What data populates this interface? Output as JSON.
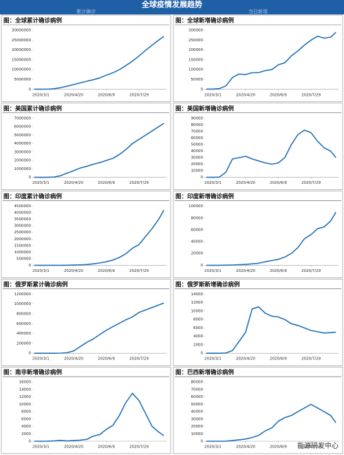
{
  "header": {
    "title": "全球疫情发展趋势",
    "left_label": "累计确诊",
    "right_label": "当日新增"
  },
  "watermark": "能源研发中心",
  "chart_data": [
    {
      "type": "line",
      "title": "图：全球累计确诊病例",
      "color": "#1f6fb5",
      "x": [
        -10,
        0,
        10,
        20,
        30,
        40,
        50,
        60,
        70,
        80,
        90,
        100,
        110,
        120,
        130,
        140,
        150,
        160,
        170,
        180,
        188
      ],
      "values": [
        75000,
        88000,
        120000,
        330000,
        850000,
        1600000,
        2400000,
        3300000,
        4100000,
        4900000,
        5800000,
        7200000,
        8400000,
        10000000,
        12100000,
        14300000,
        17000000,
        19800000,
        22500000,
        25000000,
        27000000
      ],
      "xlim": [
        -12,
        192
      ],
      "ylim": [
        0,
        30000000
      ],
      "yticks": [
        0,
        5000000,
        10000000,
        15000000,
        20000000,
        25000000,
        30000000
      ],
      "xticks": [
        {
          "value": 0,
          "label": "2020/3/1"
        },
        {
          "value": 50,
          "label": "2020/4/20"
        },
        {
          "value": 100,
          "label": "2020/6/9"
        },
        {
          "value": 150,
          "label": "2020/7/29"
        }
      ]
    },
    {
      "type": "line",
      "title": "图：全球新增确诊病例",
      "color": "#1f6fb5",
      "x": [
        -10,
        0,
        10,
        20,
        30,
        40,
        50,
        60,
        70,
        80,
        90,
        100,
        110,
        120,
        130,
        140,
        150,
        160,
        170,
        180,
        188
      ],
      "values": [
        1500,
        1800,
        4000,
        18000,
        60000,
        78000,
        75000,
        85000,
        85000,
        95000,
        100000,
        125000,
        135000,
        170000,
        195000,
        225000,
        250000,
        270000,
        260000,
        265000,
        290000
      ],
      "xlim": [
        -12,
        192
      ],
      "ylim": [
        0,
        300000
      ],
      "yticks": [
        0,
        50000,
        100000,
        150000,
        200000,
        250000,
        300000
      ],
      "xticks": [
        {
          "value": 0,
          "label": "2020/3/1"
        },
        {
          "value": 50,
          "label": "2020/4/20"
        },
        {
          "value": 100,
          "label": "2020/6/9"
        },
        {
          "value": 150,
          "label": "2020/7/29"
        }
      ]
    },
    {
      "type": "line",
      "title": "图：美国累计确诊病例",
      "color": "#1f6fb5",
      "x": [
        -10,
        0,
        10,
        20,
        30,
        40,
        50,
        60,
        70,
        80,
        90,
        100,
        110,
        120,
        130,
        140,
        150,
        160,
        170,
        180,
        188
      ],
      "values": [
        15,
        70,
        1600,
        33000,
        190000,
        500000,
        780000,
        1100000,
        1300000,
        1550000,
        1750000,
        2000000,
        2250000,
        2700000,
        3300000,
        4000000,
        4500000,
        5000000,
        5500000,
        6000000,
        6400000
      ],
      "xlim": [
        -12,
        192
      ],
      "ylim": [
        0,
        7000000
      ],
      "yticks": [
        0,
        1000000,
        2000000,
        3000000,
        4000000,
        5000000,
        6000000,
        7000000
      ],
      "xticks": [
        {
          "value": 0,
          "label": "2020/3/1"
        },
        {
          "value": 50,
          "label": "2020/4/20"
        },
        {
          "value": 100,
          "label": "2020/6/9"
        },
        {
          "value": 150,
          "label": "2020/7/29"
        }
      ]
    },
    {
      "type": "line",
      "title": "图：美国新增确诊病例",
      "color": "#1f6fb5",
      "x": [
        -10,
        0,
        10,
        20,
        30,
        40,
        50,
        60,
        70,
        80,
        90,
        100,
        110,
        120,
        130,
        140,
        150,
        160,
        170,
        180,
        188
      ],
      "values": [
        0,
        10,
        300,
        8000,
        28000,
        30000,
        32000,
        28000,
        25000,
        22000,
        20000,
        22000,
        30000,
        50000,
        65000,
        72000,
        68000,
        55000,
        45000,
        40000,
        30000
      ],
      "xlim": [
        -12,
        192
      ],
      "ylim": [
        0,
        90000
      ],
      "yticks": [
        0,
        10000,
        20000,
        30000,
        40000,
        50000,
        60000,
        70000,
        80000,
        90000
      ],
      "xticks": [
        {
          "value": 0,
          "label": "2020/3/1"
        },
        {
          "value": 50,
          "label": "2020/4/20"
        },
        {
          "value": 100,
          "label": "2020/6/9"
        },
        {
          "value": 150,
          "label": "2020/7/29"
        }
      ]
    },
    {
      "type": "line",
      "title": "图：印度累计确诊病例",
      "color": "#1f6fb5",
      "x": [
        -10,
        0,
        10,
        20,
        30,
        40,
        50,
        60,
        70,
        80,
        90,
        100,
        110,
        120,
        130,
        140,
        150,
        160,
        170,
        180,
        188
      ],
      "values": [
        3,
        3,
        30,
        500,
        2500,
        7000,
        18000,
        33000,
        60000,
        110000,
        180000,
        270000,
        400000,
        600000,
        880000,
        1300000,
        1580000,
        2200000,
        2800000,
        3500000,
        4200000
      ],
      "xlim": [
        -12,
        192
      ],
      "ylim": [
        0,
        4500000
      ],
      "yticks": [
        0,
        500000,
        1000000,
        1500000,
        2000000,
        2500000,
        3000000,
        3500000,
        4000000,
        4500000
      ],
      "xticks": [
        {
          "value": 0,
          "label": "2020/3/1"
        },
        {
          "value": 50,
          "label": "2020/4/20"
        },
        {
          "value": 100,
          "label": "2020/6/9"
        },
        {
          "value": 150,
          "label": "2020/7/29"
        }
      ]
    },
    {
      "type": "line",
      "title": "图：印度新增确诊病例",
      "color": "#1f6fb5",
      "x": [
        -10,
        0,
        10,
        20,
        30,
        40,
        50,
        60,
        70,
        80,
        90,
        100,
        110,
        120,
        130,
        140,
        150,
        160,
        170,
        180,
        188
      ],
      "values": [
        0,
        0,
        10,
        200,
        500,
        900,
        1500,
        2500,
        3500,
        6000,
        8000,
        10000,
        14000,
        20000,
        30000,
        45000,
        52000,
        62000,
        65000,
        75000,
        90000
      ],
      "xlim": [
        -12,
        192
      ],
      "ylim": [
        0,
        100000
      ],
      "yticks": [
        0,
        20000,
        40000,
        60000,
        80000,
        100000
      ],
      "xticks": [
        {
          "value": 0,
          "label": "2020/3/1"
        },
        {
          "value": 50,
          "label": "2020/4/20"
        },
        {
          "value": 100,
          "label": "2020/6/9"
        },
        {
          "value": 150,
          "label": "2020/7/29"
        }
      ]
    },
    {
      "type": "line",
      "title": "图：俄罗斯累计确诊病例",
      "color": "#1f6fb5",
      "x": [
        -10,
        0,
        10,
        20,
        30,
        40,
        50,
        60,
        70,
        80,
        90,
        100,
        110,
        120,
        130,
        140,
        150,
        160,
        170,
        180,
        188
      ],
      "values": [
        0,
        2,
        10,
        250,
        2800,
        11000,
        47000,
        134000,
        221000,
        290000,
        380000,
        467000,
        540000,
        610000,
        680000,
        740000,
        830000,
        880000,
        930000,
        980000,
        1020000
      ],
      "xlim": [
        -12,
        192
      ],
      "ylim": [
        0,
        1200000
      ],
      "yticks": [
        0,
        200000,
        400000,
        600000,
        800000,
        1000000,
        1200000
      ],
      "xticks": [
        {
          "value": 0,
          "label": "2020/3/1"
        },
        {
          "value": 50,
          "label": "2020/4/20"
        },
        {
          "value": 100,
          "label": "2020/6/9"
        },
        {
          "value": 150,
          "label": "2020/7/29"
        }
      ]
    },
    {
      "type": "line",
      "title": "图：俄罗斯新增确诊病例",
      "color": "#1f6fb5",
      "x": [
        -10,
        0,
        10,
        20,
        30,
        40,
        50,
        60,
        70,
        80,
        90,
        100,
        110,
        120,
        130,
        140,
        150,
        160,
        170,
        180,
        188
      ],
      "values": [
        0,
        0,
        0,
        60,
        650,
        2800,
        5000,
        10500,
        11000,
        9500,
        8800,
        8600,
        8000,
        7000,
        6600,
        6000,
        5400,
        5100,
        4800,
        4900,
        5000
      ],
      "xlim": [
        -12,
        192
      ],
      "ylim": [
        0,
        14000
      ],
      "yticks": [
        0,
        2000,
        4000,
        6000,
        8000,
        10000,
        12000,
        14000
      ],
      "xticks": [
        {
          "value": 0,
          "label": "2020/3/1"
        },
        {
          "value": 50,
          "label": "2020/4/20"
        },
        {
          "value": 100,
          "label": "2020/6/9"
        },
        {
          "value": 150,
          "label": "2020/7/29"
        }
      ]
    },
    {
      "type": "line",
      "title": "图：南非新增确诊病例",
      "color": "#1f6fb5",
      "x": [
        -10,
        0,
        10,
        20,
        30,
        40,
        50,
        60,
        70,
        80,
        90,
        100,
        110,
        120,
        130,
        140,
        150,
        160,
        170,
        180,
        188
      ],
      "values": [
        0,
        0,
        20,
        100,
        250,
        80,
        200,
        300,
        500,
        1400,
        1800,
        3200,
        4300,
        7000,
        10500,
        13000,
        11000,
        7500,
        4000,
        2500,
        1500
      ],
      "xlim": [
        -12,
        192
      ],
      "ylim": [
        0,
        16000
      ],
      "yticks": [
        0,
        2000,
        4000,
        6000,
        8000,
        10000,
        12000,
        14000,
        16000
      ],
      "xticks": [
        {
          "value": 0,
          "label": "2020/3/1"
        },
        {
          "value": 50,
          "label": "2020/4/20"
        },
        {
          "value": 100,
          "label": "2020/6/9"
        },
        {
          "value": 150,
          "label": "2020/7/29"
        }
      ]
    },
    {
      "type": "line",
      "title": "图：巴西新增确诊病例",
      "color": "#1f6fb5",
      "x": [
        -10,
        0,
        10,
        20,
        30,
        40,
        50,
        60,
        70,
        80,
        90,
        100,
        110,
        120,
        130,
        140,
        150,
        160,
        170,
        180,
        188
      ],
      "values": [
        0,
        0,
        0,
        100,
        1000,
        2000,
        3000,
        5000,
        8000,
        14000,
        18000,
        27000,
        32000,
        35000,
        40000,
        45000,
        50000,
        45000,
        40000,
        35000,
        25000
      ],
      "xlim": [
        -12,
        192
      ],
      "ylim": [
        0,
        80000
      ],
      "yticks": [
        0,
        10000,
        20000,
        30000,
        40000,
        50000,
        60000,
        70000,
        80000
      ],
      "xticks": [
        {
          "value": 0,
          "label": "2020/3/1"
        },
        {
          "value": 50,
          "label": "2020/4/20"
        },
        {
          "value": 100,
          "label": "2020/6/9"
        },
        {
          "value": 150,
          "label": "2020/7/29"
        }
      ]
    }
  ]
}
